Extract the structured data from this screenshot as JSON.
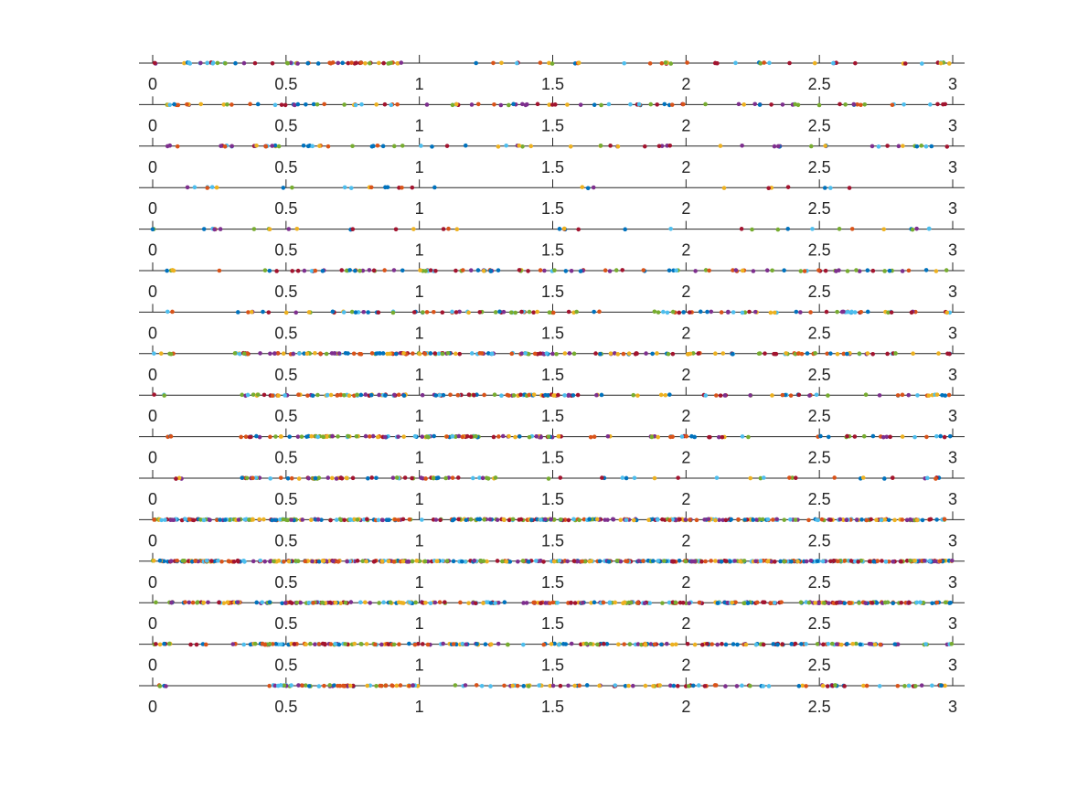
{
  "chart_data": {
    "type": "scatter",
    "layout": "stacked strip plots (one 1-D dot strip per row, sharing the x axis)",
    "xlim": [
      0,
      3
    ],
    "x_ticks": [
      0,
      0.5,
      1,
      1.5,
      2,
      2.5,
      3
    ],
    "x_tick_labels": [
      "0",
      "0.5",
      "1",
      "1.5",
      "2",
      "2.5",
      "3"
    ],
    "grid": false,
    "legend": "none",
    "title": "",
    "xlabel": "",
    "ylabel": "",
    "marker_colors": [
      "#0072BD",
      "#D95319",
      "#EDB120",
      "#7E2F8E",
      "#77AC30",
      "#4DBEEE",
      "#A2142F"
    ],
    "axis_color": "#262626",
    "strips": [
      {
        "row": 1,
        "point_count": 95,
        "segments": [
          [
            0.0,
            0.02,
            2
          ],
          [
            0.1,
            0.95,
            52
          ],
          [
            1.1,
            3.0,
            41
          ]
        ]
      },
      {
        "row": 2,
        "point_count": 100,
        "segments": [
          [
            0.0,
            0.15,
            10
          ],
          [
            0.15,
            1.5,
            45
          ],
          [
            1.5,
            3.0,
            45
          ]
        ]
      },
      {
        "row": 3,
        "point_count": 75,
        "segments": [
          [
            0.05,
            0.1,
            3
          ],
          [
            0.25,
            1.0,
            30
          ],
          [
            1.0,
            3.0,
            42
          ]
        ]
      },
      {
        "row": 4,
        "point_count": 28,
        "segments": [
          [
            0.1,
            1.2,
            18
          ],
          [
            1.3,
            2.9,
            10
          ]
        ]
      },
      {
        "row": 5,
        "point_count": 40,
        "segments": [
          [
            0.0,
            0.05,
            2
          ],
          [
            0.15,
            1.2,
            18
          ],
          [
            1.5,
            3.0,
            20
          ]
        ]
      },
      {
        "row": 6,
        "point_count": 110,
        "segments": [
          [
            0.05,
            0.1,
            4
          ],
          [
            0.25,
            0.25,
            1
          ],
          [
            0.4,
            1.5,
            55
          ],
          [
            1.5,
            3.0,
            50
          ]
        ]
      },
      {
        "row": 7,
        "point_count": 115,
        "segments": [
          [
            0.05,
            0.08,
            2
          ],
          [
            0.3,
            1.5,
            55
          ],
          [
            1.5,
            3.0,
            58
          ]
        ]
      },
      {
        "row": 8,
        "point_count": 190,
        "segments": [
          [
            0.0,
            0.08,
            5
          ],
          [
            0.3,
            1.5,
            110
          ],
          [
            1.5,
            3.0,
            75
          ]
        ]
      },
      {
        "row": 9,
        "point_count": 150,
        "segments": [
          [
            0.0,
            0.05,
            3
          ],
          [
            0.33,
            1.5,
            95
          ],
          [
            1.5,
            3.0,
            52
          ]
        ]
      },
      {
        "row": 10,
        "point_count": 150,
        "segments": [
          [
            0.0,
            0.07,
            3
          ],
          [
            0.33,
            1.5,
            100
          ],
          [
            1.5,
            3.0,
            47
          ]
        ]
      },
      {
        "row": 11,
        "point_count": 95,
        "segments": [
          [
            0.0,
            0.12,
            3
          ],
          [
            0.33,
            1.3,
            65
          ],
          [
            1.3,
            3.0,
            27
          ]
        ]
      },
      {
        "row": 12,
        "point_count": 380,
        "segments": [
          [
            0.0,
            0.1,
            15
          ],
          [
            0.1,
            3.0,
            365
          ]
        ]
      },
      {
        "row": 13,
        "point_count": 480,
        "segments": [
          [
            0.0,
            3.0,
            480
          ]
        ]
      },
      {
        "row": 14,
        "point_count": 320,
        "segments": [
          [
            0.0,
            0.2,
            15
          ],
          [
            0.2,
            3.0,
            305
          ]
        ]
      },
      {
        "row": 15,
        "point_count": 230,
        "segments": [
          [
            0.0,
            0.2,
            12
          ],
          [
            0.3,
            0.9,
            70
          ],
          [
            0.9,
            3.0,
            148
          ]
        ]
      },
      {
        "row": 16,
        "point_count": 150,
        "segments": [
          [
            0.0,
            0.08,
            4
          ],
          [
            0.43,
            1.0,
            55
          ],
          [
            1.1,
            3.0,
            91
          ]
        ]
      }
    ]
  }
}
